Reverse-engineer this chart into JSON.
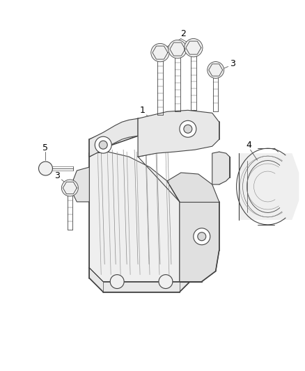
{
  "background_color": "#ffffff",
  "line_color": "#444444",
  "label_color": "#000000",
  "figsize": [
    4.38,
    5.33
  ],
  "dpi": 100,
  "label_font_size": 9,
  "lw_main": 0.8,
  "lw_thin": 0.5,
  "lw_thick": 1.2
}
